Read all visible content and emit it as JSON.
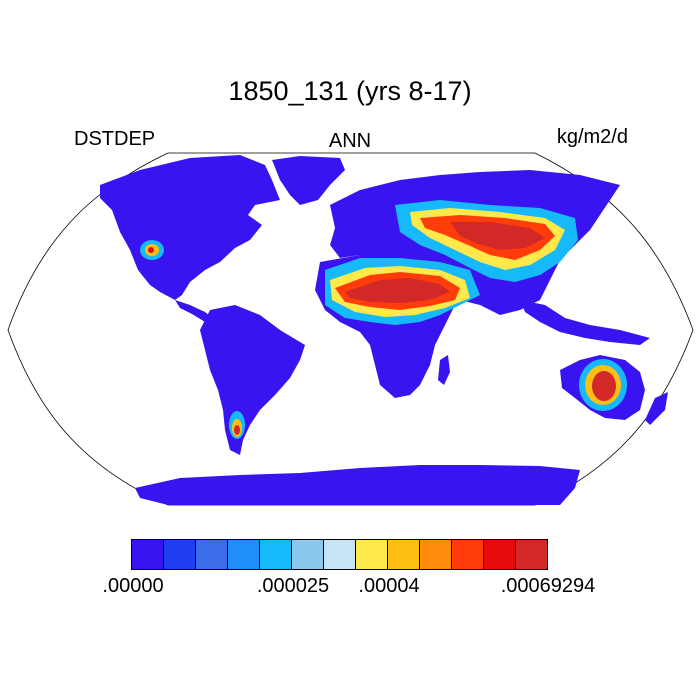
{
  "title": "1850_131 (yrs 8-17)",
  "left_label": "DSTDEP",
  "center_label": "ANN",
  "right_label": "kg/m2/d",
  "colorbar": {
    "colors": [
      "#3a14f0",
      "#1f3ef0",
      "#3c6ce8",
      "#1e8ef8",
      "#16bafa",
      "#8cc8ee",
      "#c8e4f4",
      "#ffe84a",
      "#ffbe14",
      "#ff8c0a",
      "#ff3c0a",
      "#e60a0a",
      "#d22828"
    ],
    "tick_labels": [
      ".00000",
      ".000025",
      ".00004",
      ".00069294"
    ]
  }
}
